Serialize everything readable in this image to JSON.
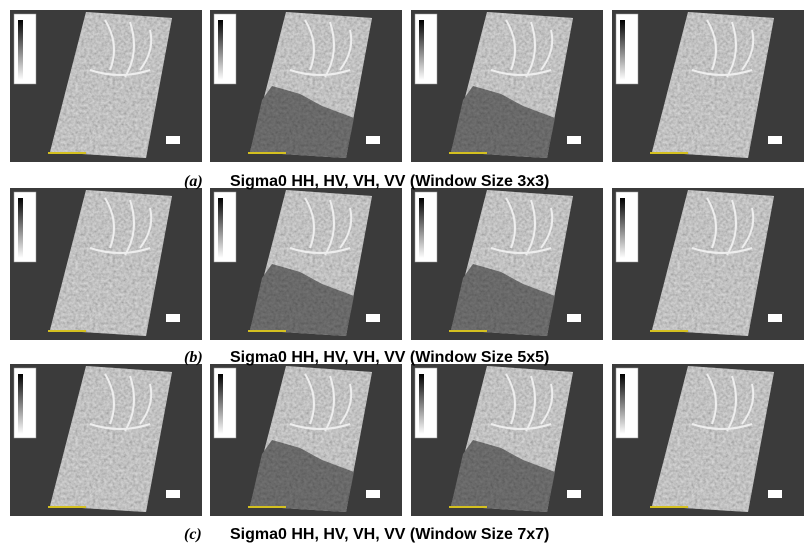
{
  "figure": {
    "rows": [
      {
        "label": "(a)",
        "caption": "Sigma0 HH, HV, VH, VV (Window Size 3x3)"
      },
      {
        "label": "(b)",
        "caption": "Sigma0 HH, HV, VH, VV (Window Size 5x5)"
      },
      {
        "label": "(c)",
        "caption": "Sigma0 HH, HV, VH, VV (Window Size 7x7)"
      }
    ]
  }
}
